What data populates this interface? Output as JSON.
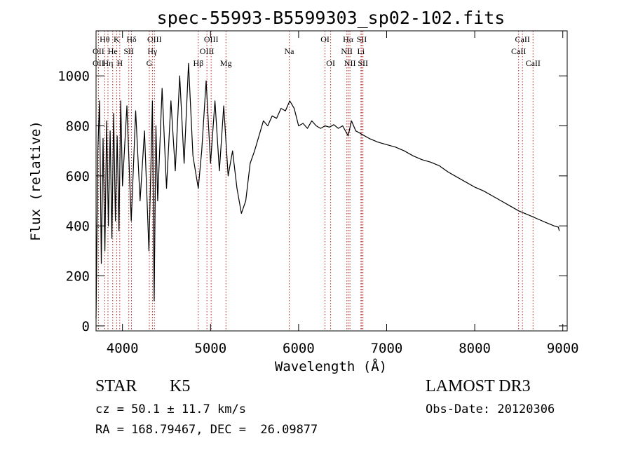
{
  "chart_data": {
    "type": "line",
    "title": "spec-55993-B5599303_sp02-102.fits",
    "xlabel": "Wavelength (Å)",
    "ylabel": "Flux (relative)",
    "xlim": [
      3700,
      9050
    ],
    "ylim": [
      -20,
      1180
    ],
    "xticks": [
      4000,
      5000,
      6000,
      7000,
      8000,
      9000
    ],
    "yticks": [
      0,
      200,
      400,
      600,
      800,
      1000
    ],
    "series": [
      {
        "name": "flux",
        "x": [
          3700,
          3720,
          3740,
          3760,
          3780,
          3800,
          3820,
          3840,
          3860,
          3880,
          3900,
          3920,
          3940,
          3960,
          3980,
          4000,
          4050,
          4100,
          4150,
          4200,
          4250,
          4300,
          4340,
          4360,
          4380,
          4400,
          4450,
          4500,
          4550,
          4600,
          4650,
          4700,
          4750,
          4800,
          4861,
          4900,
          4950,
          5000,
          5050,
          5100,
          5150,
          5200,
          5250,
          5300,
          5350,
          5400,
          5450,
          5500,
          5550,
          5600,
          5650,
          5700,
          5750,
          5800,
          5850,
          5900,
          5950,
          6000,
          6050,
          6100,
          6150,
          6200,
          6250,
          6300,
          6350,
          6400,
          6450,
          6500,
          6563,
          6600,
          6650,
          6700,
          6750,
          6800,
          6900,
          7000,
          7100,
          7200,
          7300,
          7400,
          7500,
          7600,
          7700,
          7800,
          7900,
          8000,
          8100,
          8200,
          8300,
          8400,
          8500,
          8600,
          8700,
          8800,
          8900,
          8950,
          8960
        ],
        "y": [
          30,
          700,
          900,
          250,
          750,
          300,
          820,
          400,
          780,
          350,
          850,
          420,
          760,
          380,
          900,
          560,
          880,
          420,
          860,
          500,
          780,
          300,
          900,
          100,
          800,
          500,
          950,
          550,
          900,
          620,
          1000,
          650,
          1050,
          680,
          550,
          700,
          980,
          650,
          900,
          620,
          880,
          600,
          700,
          550,
          450,
          500,
          650,
          700,
          760,
          820,
          800,
          840,
          830,
          870,
          860,
          900,
          870,
          800,
          810,
          790,
          820,
          800,
          790,
          800,
          795,
          805,
          790,
          800,
          760,
          820,
          780,
          770,
          760,
          750,
          735,
          725,
          715,
          700,
          680,
          665,
          655,
          640,
          615,
          595,
          575,
          555,
          540,
          520,
          500,
          480,
          460,
          445,
          430,
          415,
          400,
          395,
          380
        ]
      }
    ],
    "line_markers": [
      {
        "label": "Hθ",
        "x": 3798,
        "row": 1
      },
      {
        "label": "OII",
        "x": 3727,
        "row": 2
      },
      {
        "label": "OII",
        "x": 3727,
        "row": 3
      },
      {
        "label": "He",
        "x": 3889,
        "row": 2
      },
      {
        "label": "Hη",
        "x": 3835,
        "row": 3
      },
      {
        "label": "K",
        "x": 3934,
        "row": 1
      },
      {
        "label": "SII",
        "x": 4072,
        "row": 2
      },
      {
        "label": "H",
        "x": 3969,
        "row": 3
      },
      {
        "label": "Hδ",
        "x": 4102,
        "row": 1
      },
      {
        "label": "OIII",
        "x": 4363,
        "row": 1
      },
      {
        "label": "Hγ",
        "x": 4340,
        "row": 2
      },
      {
        "label": "G",
        "x": 4305,
        "row": 3
      },
      {
        "label": "Hβ",
        "x": 4861,
        "row": 3
      },
      {
        "label": "OIII",
        "x": 5007,
        "row": 1
      },
      {
        "label": "OIII",
        "x": 4959,
        "row": 2
      },
      {
        "label": "Mg",
        "x": 5175,
        "row": 3
      },
      {
        "label": "Na",
        "x": 5893,
        "row": 2
      },
      {
        "label": "OI",
        "x": 6300,
        "row": 1
      },
      {
        "label": "OI",
        "x": 6364,
        "row": 3
      },
      {
        "label": "Hα",
        "x": 6563,
        "row": 1
      },
      {
        "label": "NII",
        "x": 6548,
        "row": 2
      },
      {
        "label": "NII",
        "x": 6583,
        "row": 3
      },
      {
        "label": "SII",
        "x": 6717,
        "row": 1
      },
      {
        "label": "Li",
        "x": 6708,
        "row": 2
      },
      {
        "label": "SII",
        "x": 6731,
        "row": 3
      },
      {
        "label": "CaII",
        "x": 8542,
        "row": 1
      },
      {
        "label": "CaII",
        "x": 8498,
        "row": 2
      },
      {
        "label": "CaII",
        "x": 8662,
        "row": 3
      }
    ]
  },
  "info": {
    "object_class": "STAR",
    "subclass": "K5",
    "survey": "LAMOST DR3",
    "cz": "cz = 50.1 ± 11.7 km/s",
    "obs_date": "Obs-Date: 20120306",
    "coords": "RA = 168.79467, DEC =  26.09877"
  },
  "colors": {
    "line": "#000000",
    "marker": "#b22222"
  }
}
